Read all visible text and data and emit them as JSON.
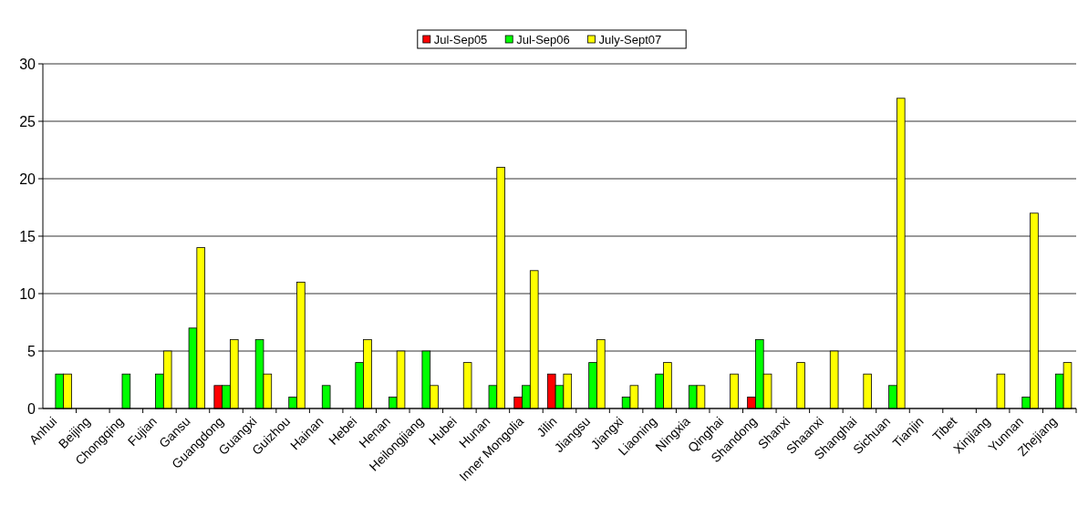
{
  "chart_data": {
    "type": "bar",
    "categories": [
      "Anhui",
      "Beijing",
      "Chongqing",
      "Fujian",
      "Gansu",
      "Guangdong",
      "Guangxi",
      "Guizhou",
      "Hainan",
      "Hebei",
      "Henan",
      "Heilongjiang",
      "Hubei",
      "Hunan",
      "Inner Mongolia",
      "Jilin",
      "Jiangsu",
      "Jiangxi",
      "Liaoning",
      "Ningxia",
      "Qinghai",
      "Shandong",
      "Shanxi",
      "Shaanxi",
      "Shanghai",
      "Sichuan",
      "Tianjin",
      "Tibet",
      "Xinjiang",
      "Yunnan",
      "Zhejiang"
    ],
    "series": [
      {
        "name": "Jul-Sep05",
        "color": "#ff0000",
        "values": [
          0,
          0,
          0,
          0,
          0,
          2,
          0,
          0,
          0,
          0,
          0,
          0,
          0,
          0,
          1,
          3,
          0,
          0,
          0,
          0,
          0,
          1,
          0,
          0,
          0,
          0,
          0,
          0,
          0,
          0,
          0
        ]
      },
      {
        "name": "Jul-Sep06",
        "color": "#00ff00",
        "values": [
          3,
          0,
          3,
          3,
          7,
          2,
          6,
          1,
          2,
          4,
          1,
          5,
          0,
          2,
          2,
          2,
          4,
          1,
          3,
          2,
          0,
          6,
          0,
          0,
          0,
          2,
          0,
          0,
          0,
          1,
          3
        ]
      },
      {
        "name": "July-Sept07",
        "color": "#ffff00",
        "values": [
          3,
          0,
          0,
          5,
          14,
          6,
          3,
          11,
          0,
          6,
          5,
          2,
          4,
          21,
          12,
          3,
          6,
          2,
          4,
          2,
          3,
          3,
          4,
          5,
          3,
          27,
          0,
          0,
          3,
          17,
          4
        ]
      }
    ],
    "ylim": [
      0,
      30
    ],
    "yticks": [
      0,
      5,
      10,
      15,
      20,
      25,
      30
    ],
    "grid": "y",
    "legend": "top"
  }
}
